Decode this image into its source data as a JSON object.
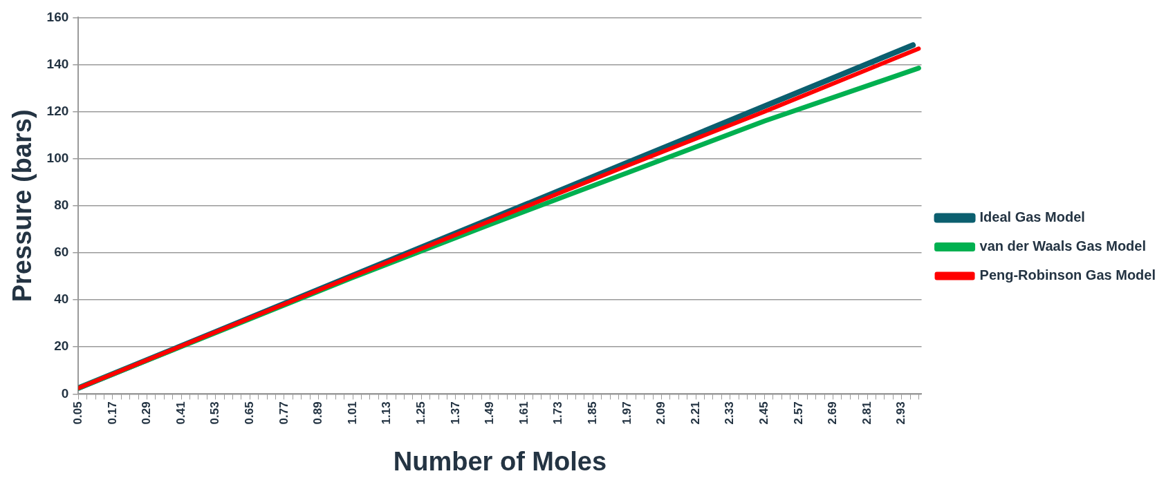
{
  "chart_data": {
    "type": "line",
    "xlabel": "Number of Moles",
    "ylabel": "Pressure (bars)",
    "xlim": [
      0.05,
      3.0
    ],
    "ylim": [
      0,
      160
    ],
    "yticks": [
      0,
      20,
      40,
      60,
      80,
      100,
      120,
      140,
      160
    ],
    "xticks": [
      0.05,
      {
        "value": 0.08,
        "label": null
      },
      {
        "value": 0.11,
        "label": null
      },
      {
        "value": 0.14,
        "label": null
      },
      0.17,
      {
        "value": 0.2,
        "label": null
      },
      {
        "value": 0.23,
        "label": null
      },
      {
        "value": 0.26,
        "label": null
      },
      0.29,
      {
        "value": 0.32,
        "label": null
      },
      {
        "value": 0.35,
        "label": null
      },
      {
        "value": 0.38,
        "label": null
      },
      0.41,
      {
        "value": 0.44,
        "label": null
      },
      {
        "value": 0.47,
        "label": null
      },
      {
        "value": 0.5,
        "label": null
      },
      0.53,
      {
        "value": 0.56,
        "label": null
      },
      {
        "value": 0.59,
        "label": null
      },
      {
        "value": 0.62,
        "label": null
      },
      0.65,
      {
        "value": 0.68,
        "label": null
      },
      {
        "value": 0.71,
        "label": null
      },
      {
        "value": 0.74,
        "label": null
      },
      0.77,
      {
        "value": 0.8,
        "label": null
      },
      {
        "value": 0.83,
        "label": null
      },
      {
        "value": 0.86,
        "label": null
      },
      0.89,
      {
        "value": 0.92,
        "label": null
      },
      {
        "value": 0.95,
        "label": null
      },
      {
        "value": 0.98,
        "label": null
      },
      1.01,
      {
        "value": 1.04,
        "label": null
      },
      {
        "value": 1.07,
        "label": null
      },
      {
        "value": 1.1,
        "label": null
      },
      1.13,
      {
        "value": 1.16,
        "label": null
      },
      {
        "value": 1.19,
        "label": null
      },
      {
        "value": 1.22,
        "label": null
      },
      1.25,
      {
        "value": 1.28,
        "label": null
      },
      {
        "value": 1.31,
        "label": null
      },
      {
        "value": 1.34,
        "label": null
      },
      1.37,
      {
        "value": 1.4,
        "label": null
      },
      {
        "value": 1.43,
        "label": null
      },
      {
        "value": 1.46,
        "label": null
      },
      1.49,
      {
        "value": 1.52,
        "label": null
      },
      {
        "value": 1.55,
        "label": null
      },
      {
        "value": 1.58,
        "label": null
      },
      1.61,
      {
        "value": 1.64,
        "label": null
      },
      {
        "value": 1.67,
        "label": null
      },
      {
        "value": 1.7,
        "label": null
      },
      1.73,
      {
        "value": 1.76,
        "label": null
      },
      {
        "value": 1.79,
        "label": null
      },
      {
        "value": 1.82,
        "label": null
      },
      1.85,
      {
        "value": 1.88,
        "label": null
      },
      {
        "value": 1.91,
        "label": null
      },
      {
        "value": 1.94,
        "label": null
      },
      1.97,
      {
        "value": 2.0,
        "label": null
      },
      {
        "value": 2.03,
        "label": null
      },
      {
        "value": 2.06,
        "label": null
      },
      2.09,
      {
        "value": 2.12,
        "label": null
      },
      {
        "value": 2.15,
        "label": null
      },
      {
        "value": 2.18,
        "label": null
      },
      2.21,
      {
        "value": 2.24,
        "label": null
      },
      {
        "value": 2.27,
        "label": null
      },
      {
        "value": 2.3,
        "label": null
      },
      2.33,
      {
        "value": 2.36,
        "label": null
      },
      {
        "value": 2.39,
        "label": null
      },
      {
        "value": 2.42,
        "label": null
      },
      2.45,
      {
        "value": 2.48,
        "label": null
      },
      {
        "value": 2.51,
        "label": null
      },
      {
        "value": 2.54,
        "label": null
      },
      2.57,
      {
        "value": 2.6,
        "label": null
      },
      {
        "value": 2.63,
        "label": null
      },
      {
        "value": 2.66,
        "label": null
      },
      2.69,
      {
        "value": 2.72,
        "label": null
      },
      {
        "value": 2.75,
        "label": null
      },
      {
        "value": 2.78,
        "label": null
      },
      2.81,
      {
        "value": 2.84,
        "label": null
      },
      {
        "value": 2.87,
        "label": null
      },
      {
        "value": 2.9,
        "label": null
      },
      2.93,
      {
        "value": 2.96,
        "label": null
      },
      {
        "value": 2.99,
        "label": null
      }
    ],
    "grid": "y",
    "legend": "right",
    "marker": "none",
    "line_style": "solid",
    "series": [
      {
        "name": "Ideal Gas Model",
        "color": "#0b5f6f",
        "x": [
          0.05,
          0.53,
          1.01,
          1.49,
          1.97,
          2.45,
          2.97
        ],
        "values": [
          2.5,
          26.4,
          50.4,
          74.3,
          98.3,
          122.3,
          148.3
        ]
      },
      {
        "name": "van der Waals Gas Model",
        "color": "#00b050",
        "x": [
          0.05,
          0.53,
          1.01,
          1.49,
          1.97,
          2.45,
          2.99
        ],
        "values": [
          2.5,
          26,
          49.5,
          72,
          94,
          116,
          138.5
        ]
      },
      {
        "name": "Peng-Robinson Gas Model",
        "color": "#ff0000",
        "x": [
          0.05,
          0.53,
          1.01,
          1.49,
          1.97,
          2.45,
          2.99
        ],
        "values": [
          2.5,
          26.3,
          50,
          73.5,
          97,
          120,
          146.8
        ]
      }
    ]
  }
}
